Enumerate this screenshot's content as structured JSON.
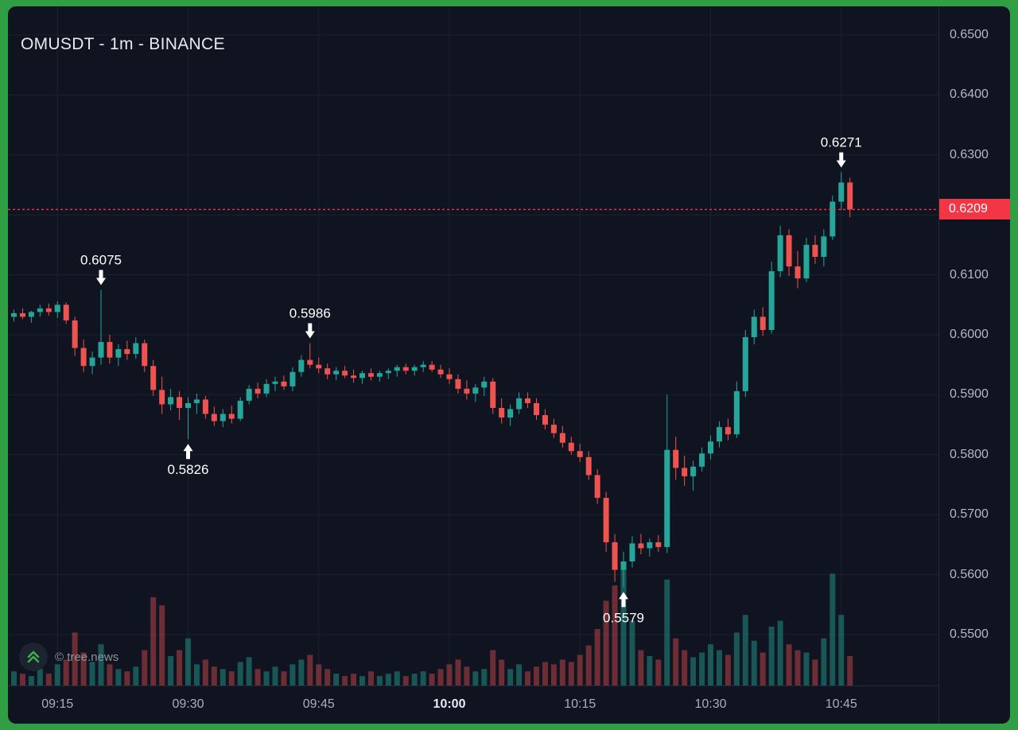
{
  "header": {
    "title": "OMUSDT - 1m - BINANCE"
  },
  "watermark": {
    "text": "© tree.news"
  },
  "price_label": {
    "value": "0.6209",
    "price": 0.6209
  },
  "colors": {
    "frame": "#2f9e44",
    "background": "#0f1420",
    "grid": "#1a2130",
    "up": "#26a69a",
    "down": "#ef5350",
    "volume_up": "rgba(38,166,154,0.45)",
    "volume_down": "rgba(239,83,80,0.42)",
    "price_line": "#f23645",
    "annotation": "#ffffff"
  },
  "axis": {
    "price_ticks": [
      {
        "label": "0.6500",
        "price": 0.65
      },
      {
        "label": "0.6400",
        "price": 0.64
      },
      {
        "label": "0.6300",
        "price": 0.63
      },
      {
        "label": "0.6200",
        "price": 0.62
      },
      {
        "label": "0.6100",
        "price": 0.61
      },
      {
        "label": "0.6000",
        "price": 0.6
      },
      {
        "label": "0.5900",
        "price": 0.59
      },
      {
        "label": "0.5800",
        "price": 0.58
      },
      {
        "label": "0.5700",
        "price": 0.57
      },
      {
        "label": "0.5600",
        "price": 0.56
      },
      {
        "label": "0.5500",
        "price": 0.55
      }
    ],
    "time_ticks": [
      {
        "label": "09:15",
        "index": 5,
        "bold": false
      },
      {
        "label": "09:30",
        "index": 20,
        "bold": false
      },
      {
        "label": "09:45",
        "index": 35,
        "bold": false
      },
      {
        "label": "10:00",
        "index": 50,
        "bold": true
      },
      {
        "label": "10:15",
        "index": 65,
        "bold": false
      },
      {
        "label": "10:30",
        "index": 80,
        "bold": false
      },
      {
        "label": "10:45",
        "index": 95,
        "bold": false
      }
    ]
  },
  "annotations": [
    {
      "label": "0.6075",
      "index": 10,
      "price": 0.6075,
      "side": "above"
    },
    {
      "label": "0.5826",
      "index": 20,
      "price": 0.5826,
      "side": "below"
    },
    {
      "label": "0.5986",
      "index": 34,
      "price": 0.5986,
      "side": "above"
    },
    {
      "label": "0.5579",
      "index": 70,
      "price": 0.5579,
      "side": "below"
    },
    {
      "label": "0.6271",
      "index": 95,
      "price": 0.6271,
      "side": "above"
    }
  ],
  "chart_data": {
    "type": "candlestick_with_volume",
    "title": "OMUSDT - 1m - BINANCE",
    "symbol": "OMUSDT",
    "interval": "1m",
    "exchange": "BINANCE",
    "start_time": "09:10",
    "minutes_per_candle": 1,
    "y_range": [
      0.55,
      0.65
    ],
    "current_price": 0.6209,
    "candle_format": [
      "open",
      "high",
      "low",
      "close",
      "volume"
    ],
    "candles": [
      [
        0.603,
        0.6042,
        0.6022,
        0.6036,
        12
      ],
      [
        0.6036,
        0.6044,
        0.6026,
        0.603,
        10
      ],
      [
        0.603,
        0.604,
        0.602,
        0.6038,
        8
      ],
      [
        0.6038,
        0.605,
        0.603,
        0.6044,
        14
      ],
      [
        0.6044,
        0.6052,
        0.6032,
        0.6038,
        10
      ],
      [
        0.6038,
        0.6056,
        0.6028,
        0.605,
        18
      ],
      [
        0.605,
        0.6054,
        0.6018,
        0.6024,
        22
      ],
      [
        0.6024,
        0.603,
        0.5965,
        0.5978,
        45
      ],
      [
        0.5978,
        0.5992,
        0.5938,
        0.5948,
        28
      ],
      [
        0.5948,
        0.5972,
        0.5934,
        0.5962,
        20
      ],
      [
        0.5962,
        0.6075,
        0.595,
        0.5988,
        35
      ],
      [
        0.5988,
        0.6,
        0.5952,
        0.5962,
        18
      ],
      [
        0.5962,
        0.5984,
        0.5948,
        0.5976,
        14
      ],
      [
        0.5976,
        0.599,
        0.5958,
        0.5968,
        12
      ],
      [
        0.5968,
        0.5996,
        0.596,
        0.5986,
        16
      ],
      [
        0.5986,
        0.5992,
        0.5938,
        0.5948,
        30
      ],
      [
        0.5948,
        0.5958,
        0.5898,
        0.5908,
        75
      ],
      [
        0.5908,
        0.593,
        0.5868,
        0.5884,
        68
      ],
      [
        0.5884,
        0.591,
        0.5874,
        0.5896,
        25
      ],
      [
        0.5896,
        0.5906,
        0.5858,
        0.5878,
        30
      ],
      [
        0.5878,
        0.5896,
        0.5826,
        0.5886,
        40
      ],
      [
        0.5886,
        0.5902,
        0.5868,
        0.5892,
        18
      ],
      [
        0.5892,
        0.5898,
        0.586,
        0.5868,
        22
      ],
      [
        0.5868,
        0.588,
        0.5848,
        0.5856,
        16
      ],
      [
        0.5856,
        0.5876,
        0.5846,
        0.5868,
        14
      ],
      [
        0.5868,
        0.5882,
        0.5852,
        0.586,
        12
      ],
      [
        0.586,
        0.5896,
        0.5856,
        0.589,
        20
      ],
      [
        0.589,
        0.5916,
        0.5884,
        0.591,
        24
      ],
      [
        0.591,
        0.592,
        0.5894,
        0.5902,
        14
      ],
      [
        0.5902,
        0.5926,
        0.5896,
        0.5918,
        12
      ],
      [
        0.5918,
        0.593,
        0.5906,
        0.5922,
        16
      ],
      [
        0.5922,
        0.5932,
        0.5908,
        0.5914,
        12
      ],
      [
        0.5914,
        0.5946,
        0.5906,
        0.5938,
        18
      ],
      [
        0.5938,
        0.5966,
        0.593,
        0.5958,
        22
      ],
      [
        0.5958,
        0.5986,
        0.5944,
        0.595,
        26
      ],
      [
        0.595,
        0.5962,
        0.5936,
        0.5944,
        18
      ],
      [
        0.5944,
        0.5952,
        0.5926,
        0.5934,
        14
      ],
      [
        0.5934,
        0.5946,
        0.5924,
        0.594,
        10
      ],
      [
        0.594,
        0.5948,
        0.5928,
        0.5932,
        8
      ],
      [
        0.5932,
        0.5942,
        0.592,
        0.5928,
        10
      ],
      [
        0.5928,
        0.594,
        0.5918,
        0.5936,
        8
      ],
      [
        0.5936,
        0.5944,
        0.5924,
        0.593,
        12
      ],
      [
        0.593,
        0.594,
        0.5922,
        0.5936,
        8
      ],
      [
        0.5936,
        0.5944,
        0.5926,
        0.594,
        10
      ],
      [
        0.594,
        0.595,
        0.593,
        0.5946,
        12
      ],
      [
        0.5946,
        0.5952,
        0.5934,
        0.594,
        8
      ],
      [
        0.594,
        0.595,
        0.5932,
        0.5946,
        10
      ],
      [
        0.5946,
        0.5956,
        0.5938,
        0.595,
        12
      ],
      [
        0.595,
        0.5956,
        0.5938,
        0.5942,
        10
      ],
      [
        0.5942,
        0.595,
        0.5928,
        0.5934,
        14
      ],
      [
        0.5934,
        0.5944,
        0.5918,
        0.5926,
        18
      ],
      [
        0.5926,
        0.5934,
        0.5902,
        0.591,
        22
      ],
      [
        0.591,
        0.5924,
        0.5892,
        0.5902,
        16
      ],
      [
        0.5902,
        0.5918,
        0.5888,
        0.5912,
        12
      ],
      [
        0.5912,
        0.593,
        0.5898,
        0.5922,
        14
      ],
      [
        0.5922,
        0.5928,
        0.5868,
        0.5878,
        30
      ],
      [
        0.5878,
        0.5894,
        0.5852,
        0.5862,
        22
      ],
      [
        0.5862,
        0.5884,
        0.5848,
        0.5876,
        14
      ],
      [
        0.5876,
        0.5904,
        0.5868,
        0.5894,
        18
      ],
      [
        0.5894,
        0.5904,
        0.5878,
        0.5886,
        12
      ],
      [
        0.5886,
        0.5894,
        0.5858,
        0.5866,
        16
      ],
      [
        0.5866,
        0.5876,
        0.5842,
        0.585,
        20
      ],
      [
        0.585,
        0.586,
        0.5828,
        0.5836,
        18
      ],
      [
        0.5836,
        0.5848,
        0.5812,
        0.582,
        22
      ],
      [
        0.582,
        0.583,
        0.58,
        0.5806,
        20
      ],
      [
        0.5806,
        0.5818,
        0.5788,
        0.5796,
        26
      ],
      [
        0.5796,
        0.5806,
        0.5758,
        0.5766,
        34
      ],
      [
        0.5766,
        0.5776,
        0.5718,
        0.5728,
        48
      ],
      [
        0.5728,
        0.5738,
        0.5638,
        0.5654,
        72
      ],
      [
        0.5654,
        0.5668,
        0.5588,
        0.5608,
        85
      ],
      [
        0.5608,
        0.5638,
        0.5579,
        0.5622,
        100
      ],
      [
        0.5622,
        0.5664,
        0.5612,
        0.5652,
        55
      ],
      [
        0.5652,
        0.5668,
        0.5634,
        0.5644,
        30
      ],
      [
        0.5644,
        0.566,
        0.563,
        0.5654,
        25
      ],
      [
        0.5654,
        0.5666,
        0.5638,
        0.5646,
        22
      ],
      [
        0.5646,
        0.59,
        0.5636,
        0.5808,
        90
      ],
      [
        0.5808,
        0.583,
        0.5758,
        0.5778,
        40
      ],
      [
        0.5778,
        0.5798,
        0.5748,
        0.5764,
        30
      ],
      [
        0.5764,
        0.579,
        0.574,
        0.578,
        24
      ],
      [
        0.578,
        0.5812,
        0.5772,
        0.5802,
        28
      ],
      [
        0.5802,
        0.5832,
        0.5792,
        0.5822,
        35
      ],
      [
        0.5822,
        0.5856,
        0.5812,
        0.5846,
        30
      ],
      [
        0.5846,
        0.586,
        0.5824,
        0.5834,
        26
      ],
      [
        0.5834,
        0.5922,
        0.5828,
        0.5906,
        45
      ],
      [
        0.5906,
        0.6008,
        0.5896,
        0.5996,
        60
      ],
      [
        0.5996,
        0.6042,
        0.5984,
        0.603,
        38
      ],
      [
        0.603,
        0.6046,
        0.5998,
        0.6008,
        28
      ],
      [
        0.6008,
        0.6122,
        0.6002,
        0.6106,
        50
      ],
      [
        0.6106,
        0.6182,
        0.6096,
        0.6166,
        55
      ],
      [
        0.6166,
        0.6176,
        0.6098,
        0.6114,
        35
      ],
      [
        0.6114,
        0.614,
        0.6078,
        0.6094,
        30
      ],
      [
        0.6094,
        0.6162,
        0.6088,
        0.615,
        28
      ],
      [
        0.615,
        0.6166,
        0.6118,
        0.613,
        22
      ],
      [
        0.613,
        0.6176,
        0.6114,
        0.6164,
        40
      ],
      [
        0.6164,
        0.6232,
        0.6158,
        0.6222,
        95
      ],
      [
        0.6222,
        0.6271,
        0.6208,
        0.6254,
        60
      ],
      [
        0.6254,
        0.6262,
        0.6196,
        0.6209,
        25
      ]
    ]
  }
}
